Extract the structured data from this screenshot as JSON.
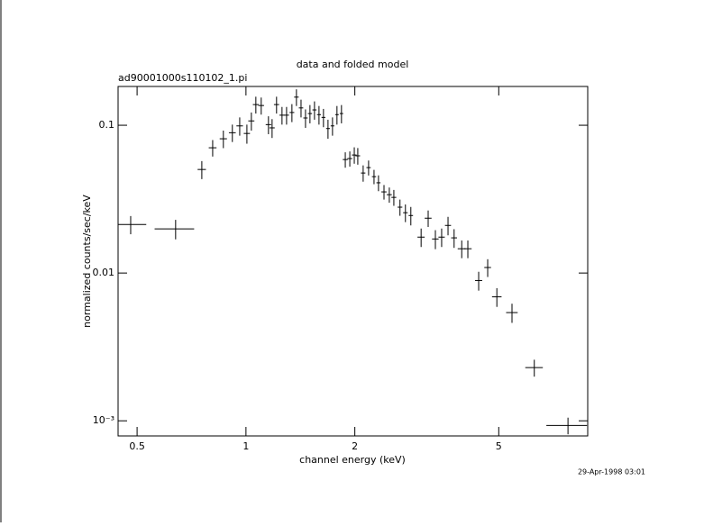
{
  "chart_data": {
    "type": "errorbar",
    "title": "data and folded model",
    "subtitle": "ad90001000s110102_1.pi",
    "xlabel": "channel energy (keV)",
    "ylabel": "normalized counts/sec/keV",
    "timestamp": "29-Apr-1998 03:01",
    "xscale": "log",
    "yscale": "log",
    "xlim": [
      0.443,
      8.81
    ],
    "ylim": [
      0.00079,
      0.183
    ],
    "xticks": [
      0.5,
      1,
      2,
      5
    ],
    "yticks": [
      {
        "value": 0.001,
        "label": "10⁻³"
      },
      0.01,
      0.1
    ],
    "color": "#000000",
    "x": [
      0.48,
      0.639,
      0.755,
      0.809,
      0.866,
      0.917,
      0.961,
      1.006,
      1.035,
      1.065,
      1.102,
      1.154,
      1.181,
      1.215,
      1.258,
      1.295,
      1.34,
      1.379,
      1.42,
      1.461,
      1.503,
      1.547,
      1.592,
      1.638,
      1.686,
      1.735,
      1.785,
      1.837,
      1.882,
      1.937,
      1.993,
      2.038,
      2.109,
      2.183,
      2.26,
      2.325,
      2.408,
      2.491,
      2.564,
      2.666,
      2.76,
      2.857,
      3.05,
      3.19,
      3.34,
      3.476,
      3.62,
      3.763,
      3.95,
      4.107,
      4.4,
      4.66,
      4.94,
      5.44,
      6.27,
      7.77
    ],
    "xerr": [
      0.05,
      0.08,
      0.02,
      0.02,
      0.02,
      0.02,
      0.02,
      0.02,
      0.02,
      0.02,
      0.02,
      0.02,
      0.02,
      0.02,
      0.02,
      0.02,
      0.02,
      0.02,
      0.02,
      0.02,
      0.02,
      0.02,
      0.02,
      0.02,
      0.02,
      0.02,
      0.02,
      0.02,
      0.03,
      0.03,
      0.03,
      0.03,
      0.03,
      0.03,
      0.03,
      0.03,
      0.04,
      0.04,
      0.04,
      0.04,
      0.04,
      0.04,
      0.07,
      0.07,
      0.07,
      0.07,
      0.07,
      0.07,
      0.1,
      0.1,
      0.1,
      0.1,
      0.15,
      0.2,
      0.35,
      1.0
    ],
    "values": [
      0.0213,
      0.0199,
      0.0502,
      0.0704,
      0.081,
      0.089,
      0.099,
      0.088,
      0.107,
      0.138,
      0.136,
      0.101,
      0.096,
      0.138,
      0.117,
      0.117,
      0.122,
      0.155,
      0.131,
      0.112,
      0.12,
      0.127,
      0.118,
      0.113,
      0.095,
      0.099,
      0.118,
      0.12,
      0.0586,
      0.0595,
      0.0629,
      0.0621,
      0.0475,
      0.0517,
      0.0449,
      0.0408,
      0.0354,
      0.0339,
      0.0325,
      0.0279,
      0.0256,
      0.0245,
      0.0175,
      0.0235,
      0.017,
      0.0175,
      0.021,
      0.0173,
      0.0146,
      0.0146,
      0.0089,
      0.0109,
      0.0069,
      0.0054,
      0.00229,
      0.00093
    ],
    "yerr": [
      0.003,
      0.003,
      0.007,
      0.009,
      0.011,
      0.012,
      0.014,
      0.013,
      0.015,
      0.018,
      0.018,
      0.014,
      0.014,
      0.018,
      0.016,
      0.016,
      0.017,
      0.02,
      0.018,
      0.016,
      0.017,
      0.018,
      0.017,
      0.016,
      0.014,
      0.014,
      0.017,
      0.017,
      0.007,
      0.007,
      0.008,
      0.008,
      0.006,
      0.006,
      0.005,
      0.005,
      0.004,
      0.004,
      0.004,
      0.0035,
      0.0035,
      0.0035,
      0.0025,
      0.003,
      0.0025,
      0.0025,
      0.003,
      0.0025,
      0.002,
      0.002,
      0.0013,
      0.0015,
      0.001,
      0.0008,
      0.0003,
      0.00012
    ]
  }
}
